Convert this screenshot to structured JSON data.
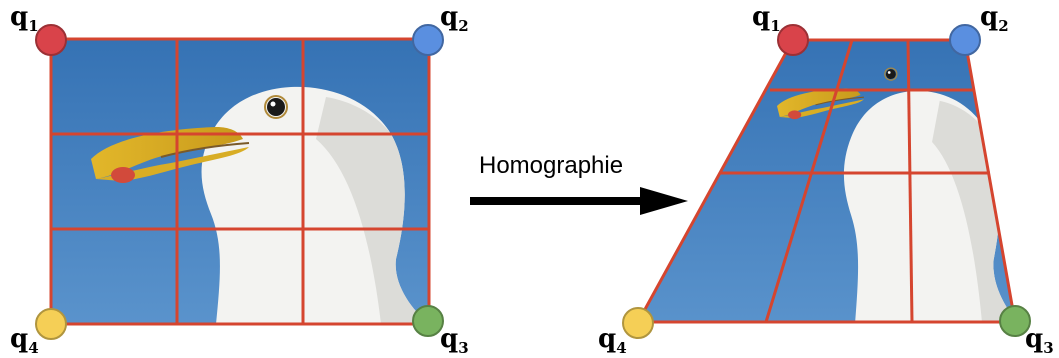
{
  "arrow_label": "Homographie",
  "corner_labels": [
    {
      "main": "q",
      "sub": "1"
    },
    {
      "main": "q",
      "sub": "2"
    },
    {
      "main": "q",
      "sub": "3"
    },
    {
      "main": "q",
      "sub": "4"
    }
  ],
  "corner_colors": {
    "q1": "#d9434a",
    "q2": "#5a8fe0",
    "q3": "#79b35f",
    "q4": "#f5cf56"
  },
  "grid_color": "#d5452f",
  "sky_color": "#3f7ab8"
}
